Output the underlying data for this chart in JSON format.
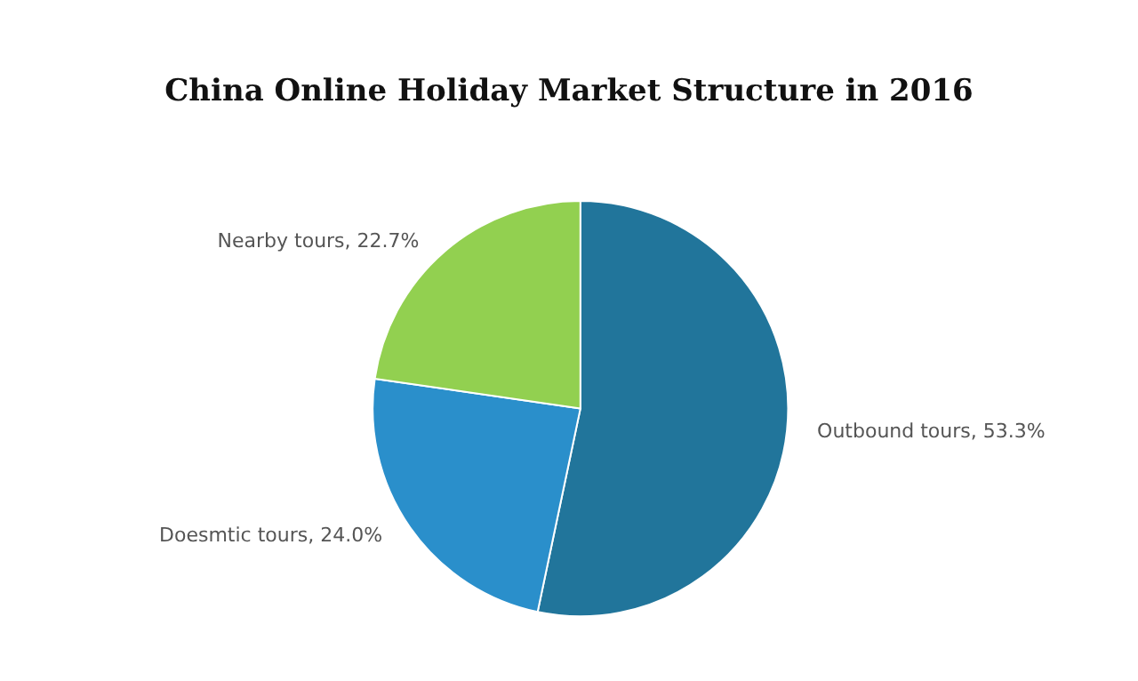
{
  "chart_data": {
    "type": "pie",
    "title": "China Online Holiday Market Structure in 2016",
    "categories": [
      "Outbound tours",
      "Doesmtic tours",
      "Nearby tours"
    ],
    "values": [
      53.3,
      24.0,
      22.7
    ],
    "value_labels": [
      "53.3%",
      "24.0%",
      "22.7%"
    ],
    "colors": [
      "#21759b",
      "#2a8fcb",
      "#92d050"
    ],
    "legend": false
  }
}
